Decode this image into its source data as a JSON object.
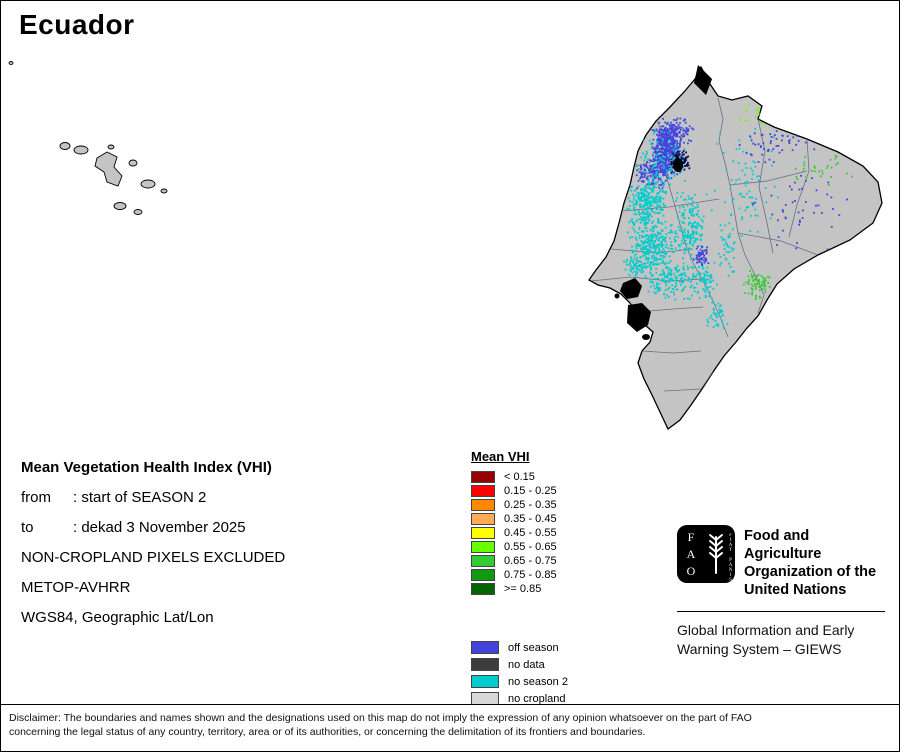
{
  "page": {
    "title": "Ecuador"
  },
  "info": {
    "heading": "Mean Vegetation Health Index (VHI)",
    "rows": [
      {
        "label": "from",
        "value": ": start of SEASON 2"
      },
      {
        "label": "to",
        "value": ": dekad 3 November 2025"
      }
    ],
    "lines": [
      "NON-CROPLAND PIXELS EXCLUDED",
      "METOP-AVHRR",
      "WGS84, Geographic Lat/Lon"
    ]
  },
  "legend": {
    "title": "Mean VHI",
    "classes": [
      {
        "label": "< 0.15",
        "color": "#990000"
      },
      {
        "label": "0.15 - 0.25",
        "color": "#ff0000"
      },
      {
        "label": "0.25 - 0.35",
        "color": "#ff8800"
      },
      {
        "label": "0.35 - 0.45",
        "color": "#ffaa55"
      },
      {
        "label": "0.45 - 0.55",
        "color": "#ffff00"
      },
      {
        "label": "0.55 - 0.65",
        "color": "#66ff00"
      },
      {
        "label": "0.65 - 0.75",
        "color": "#33cc33"
      },
      {
        "label": "0.75 - 0.85",
        "color": "#119911"
      },
      {
        "label": ">= 0.85",
        "color": "#006600"
      }
    ],
    "extra_classes": [
      {
        "label": "off season",
        "color": "#4444dd"
      },
      {
        "label": "no data",
        "color": "#3d3d3d"
      },
      {
        "label": "no season 2",
        "color": "#00cccc"
      },
      {
        "label": "no cropland",
        "color": "#d8d8d8"
      }
    ]
  },
  "fao": {
    "logo_text": "FAO",
    "logo_motto": "FIAT PANIS",
    "name_lines": [
      "Food and Agriculture",
      "Organization of the",
      "United Nations"
    ],
    "giews_lines": [
      "Global Information and Early",
      "Warning System – GIEWS"
    ]
  },
  "disclaimer": {
    "line1": "Disclaimer: The boundaries and names shown and the designations used on this map do not imply the expression of any opinion whatsoever on the part of FAO",
    "line2": "concerning the legal status of any country, territory, area or of its authorities, or concerning the delimitation of its frontiers and boundaries."
  }
}
